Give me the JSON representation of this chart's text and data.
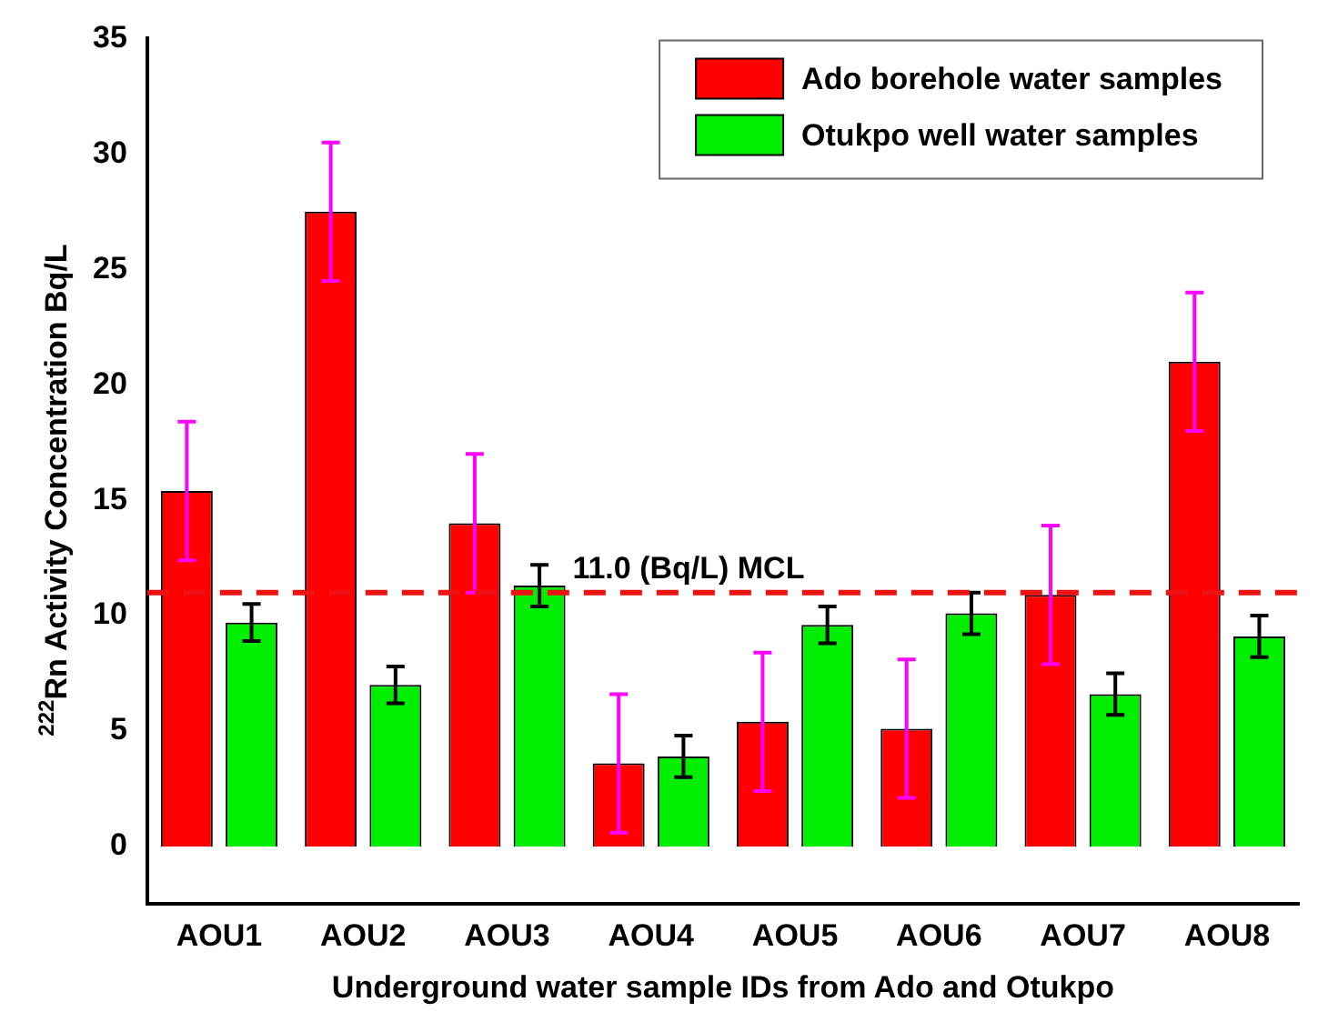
{
  "chart_data": {
    "type": "bar",
    "xlabel": "Underground water sample IDs from Ado and Otukpo",
    "ylabel": "$^{222}$Rn Activity Concentration Bq/L",
    "categories": [
      "AOU1",
      "AOU2",
      "AOU3",
      "AOU4",
      "AOU5",
      "AOU6",
      "AOU7",
      "AOU8"
    ],
    "series": [
      {
        "name": "Ado borehole water samples",
        "color": "#ff0000",
        "values": [
          15.4,
          27.5,
          14.0,
          3.6,
          5.4,
          5.1,
          10.9,
          21.0
        ],
        "errors": [
          3,
          3,
          3,
          3,
          3,
          3,
          3,
          3
        ]
      },
      {
        "name": "Otukpo well water samples",
        "color": "#00ee00",
        "values": [
          9.7,
          7.0,
          11.3,
          3.9,
          9.6,
          10.1,
          6.6,
          9.1
        ],
        "errors": [
          0.8,
          0.8,
          0.9,
          0.9,
          0.8,
          0.9,
          0.9,
          0.9
        ]
      }
    ],
    "ylim": [
      -2.5,
      35
    ],
    "yticks": [
      0,
      5,
      10,
      15,
      20,
      25,
      30,
      35
    ],
    "grid": false,
    "legend": "top right",
    "ref_lines": [
      {
        "axis": "y",
        "value": 11.0,
        "label": "11.0 (Bq/L) MCL",
        "color": "#ee1111",
        "line_style": "dashed"
      }
    ]
  }
}
